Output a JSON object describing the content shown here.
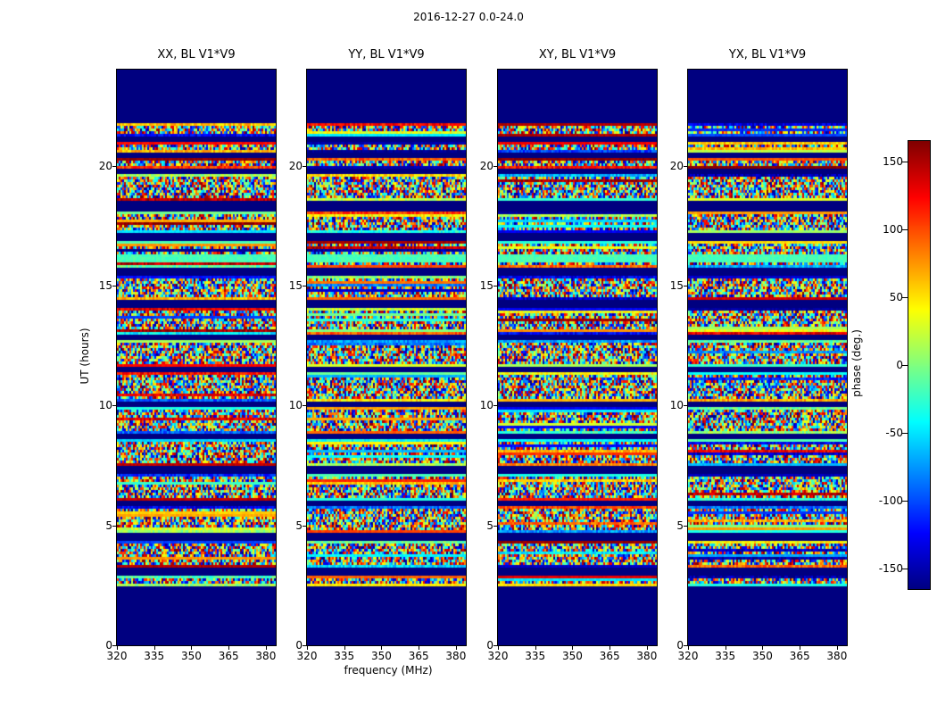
{
  "figure": {
    "title": "2016-12-27 0.0-24.0",
    "xlabel": "frequency (MHz)",
    "ylabel": "UT (hours)",
    "colorbar_label": "phase (deg.)"
  },
  "chart_data": {
    "type": "heatmap",
    "title": "2016-12-27 0.0-24.0",
    "xlabel": "frequency (MHz)",
    "ylabel": "UT (hours)",
    "zlabel": "phase (deg.)",
    "colormap": "jet",
    "panels": [
      "XX, BL V1*V9",
      "YY, BL V1*V9",
      "XY, BL V1*V9",
      "YX, BL V1*V9"
    ],
    "x_range_mhz": [
      320,
      384
    ],
    "x_ticks": [
      320,
      335,
      350,
      365,
      380
    ],
    "y_range_hours": [
      0,
      24
    ],
    "y_ticks": [
      0,
      5,
      10,
      15,
      20
    ],
    "colorbar_ticks": [
      150,
      100,
      50,
      0,
      -50,
      -100,
      -150
    ],
    "values_description": "pseudo-random interferometric visibility phase noise spanning roughly -180..180 deg in unflagged time ranges; flagged / no-data times rendered solid dark navy; horizontal coherent-phase streaks appear throughout",
    "flagged_time_intervals_hours": [
      [
        0,
        2.5
      ],
      [
        2.9,
        3.2
      ],
      [
        4.4,
        4.65
      ],
      [
        5.8,
        6.05
      ],
      [
        7.2,
        7.45
      ],
      [
        8.6,
        8.85
      ],
      [
        9.95,
        10.2
      ],
      [
        11.35,
        11.6
      ],
      [
        12.75,
        13.0
      ],
      [
        14.1,
        14.4
      ],
      [
        15.45,
        15.7
      ],
      [
        16.85,
        17.15
      ],
      [
        18.1,
        18.5
      ],
      [
        19.6,
        19.9
      ],
      [
        20.3,
        20.5
      ],
      [
        21.0,
        21.2
      ],
      [
        21.75,
        24
      ]
    ],
    "special_bands": [
      {
        "t_hours": [
          15.95,
          16.35
        ],
        "phase_deg": -20
      }
    ]
  }
}
